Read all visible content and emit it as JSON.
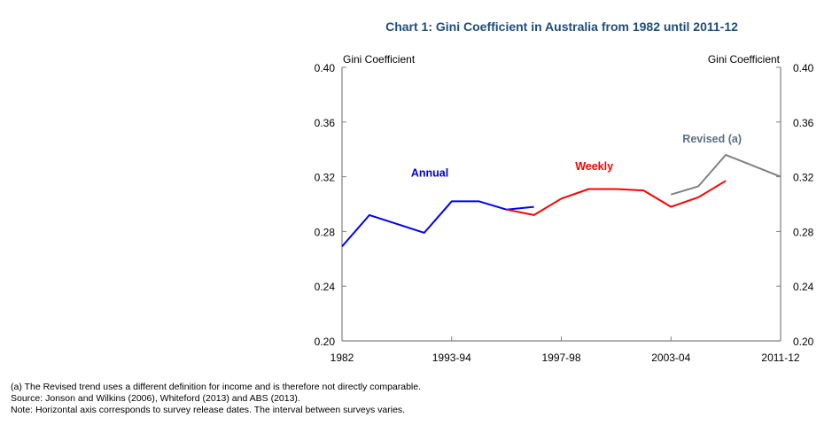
{
  "chart_data": {
    "type": "line",
    "title": "Chart 1: Gini Coefficient in Australia from 1982 until 2011-12",
    "ylabel_left": "Gini Coefficient",
    "ylabel_right": "Gini Coefficient",
    "ylim": [
      0.2,
      0.4
    ],
    "y_ticks": [
      "0.40",
      "0.36",
      "0.32",
      "0.28",
      "0.24",
      "0.20"
    ],
    "x_ticks": [
      "1982",
      "1993-94",
      "1997-98",
      "2003-04",
      "2011-12"
    ],
    "x_tick_index": [
      0,
      4,
      8,
      12,
      16
    ],
    "x_range": [
      0,
      16
    ],
    "series": [
      {
        "name": "Annual",
        "color": "#0000ff",
        "x": [
          0,
          1,
          3,
          4,
          5,
          6,
          7
        ],
        "values": [
          0.269,
          0.292,
          0.279,
          0.302,
          0.302,
          0.296,
          0.298
        ]
      },
      {
        "name": "Weekly",
        "color": "#ff0000",
        "x": [
          6,
          7,
          8,
          9,
          10,
          11,
          12,
          13,
          14
        ],
        "values": [
          0.296,
          0.292,
          0.304,
          0.311,
          0.311,
          0.31,
          0.298,
          0.305,
          0.317
        ]
      },
      {
        "name": "Revised (a)",
        "color": "#808080",
        "x": [
          12,
          13,
          14,
          16
        ],
        "values": [
          0.307,
          0.313,
          0.336,
          0.32
        ]
      }
    ],
    "annotations": [
      "Annual",
      "Weekly",
      "Revised (a)"
    ]
  },
  "notes": {
    "line1": "(a) The Revised trend uses a different definition for income and is therefore not directly comparable.",
    "line2": "Source: Jonson and Wilkins (2006), Whiteford (2013) and ABS (2013).",
    "line3": "Note: Horizontal axis corresponds to survey release dates. The interval between surveys varies."
  }
}
